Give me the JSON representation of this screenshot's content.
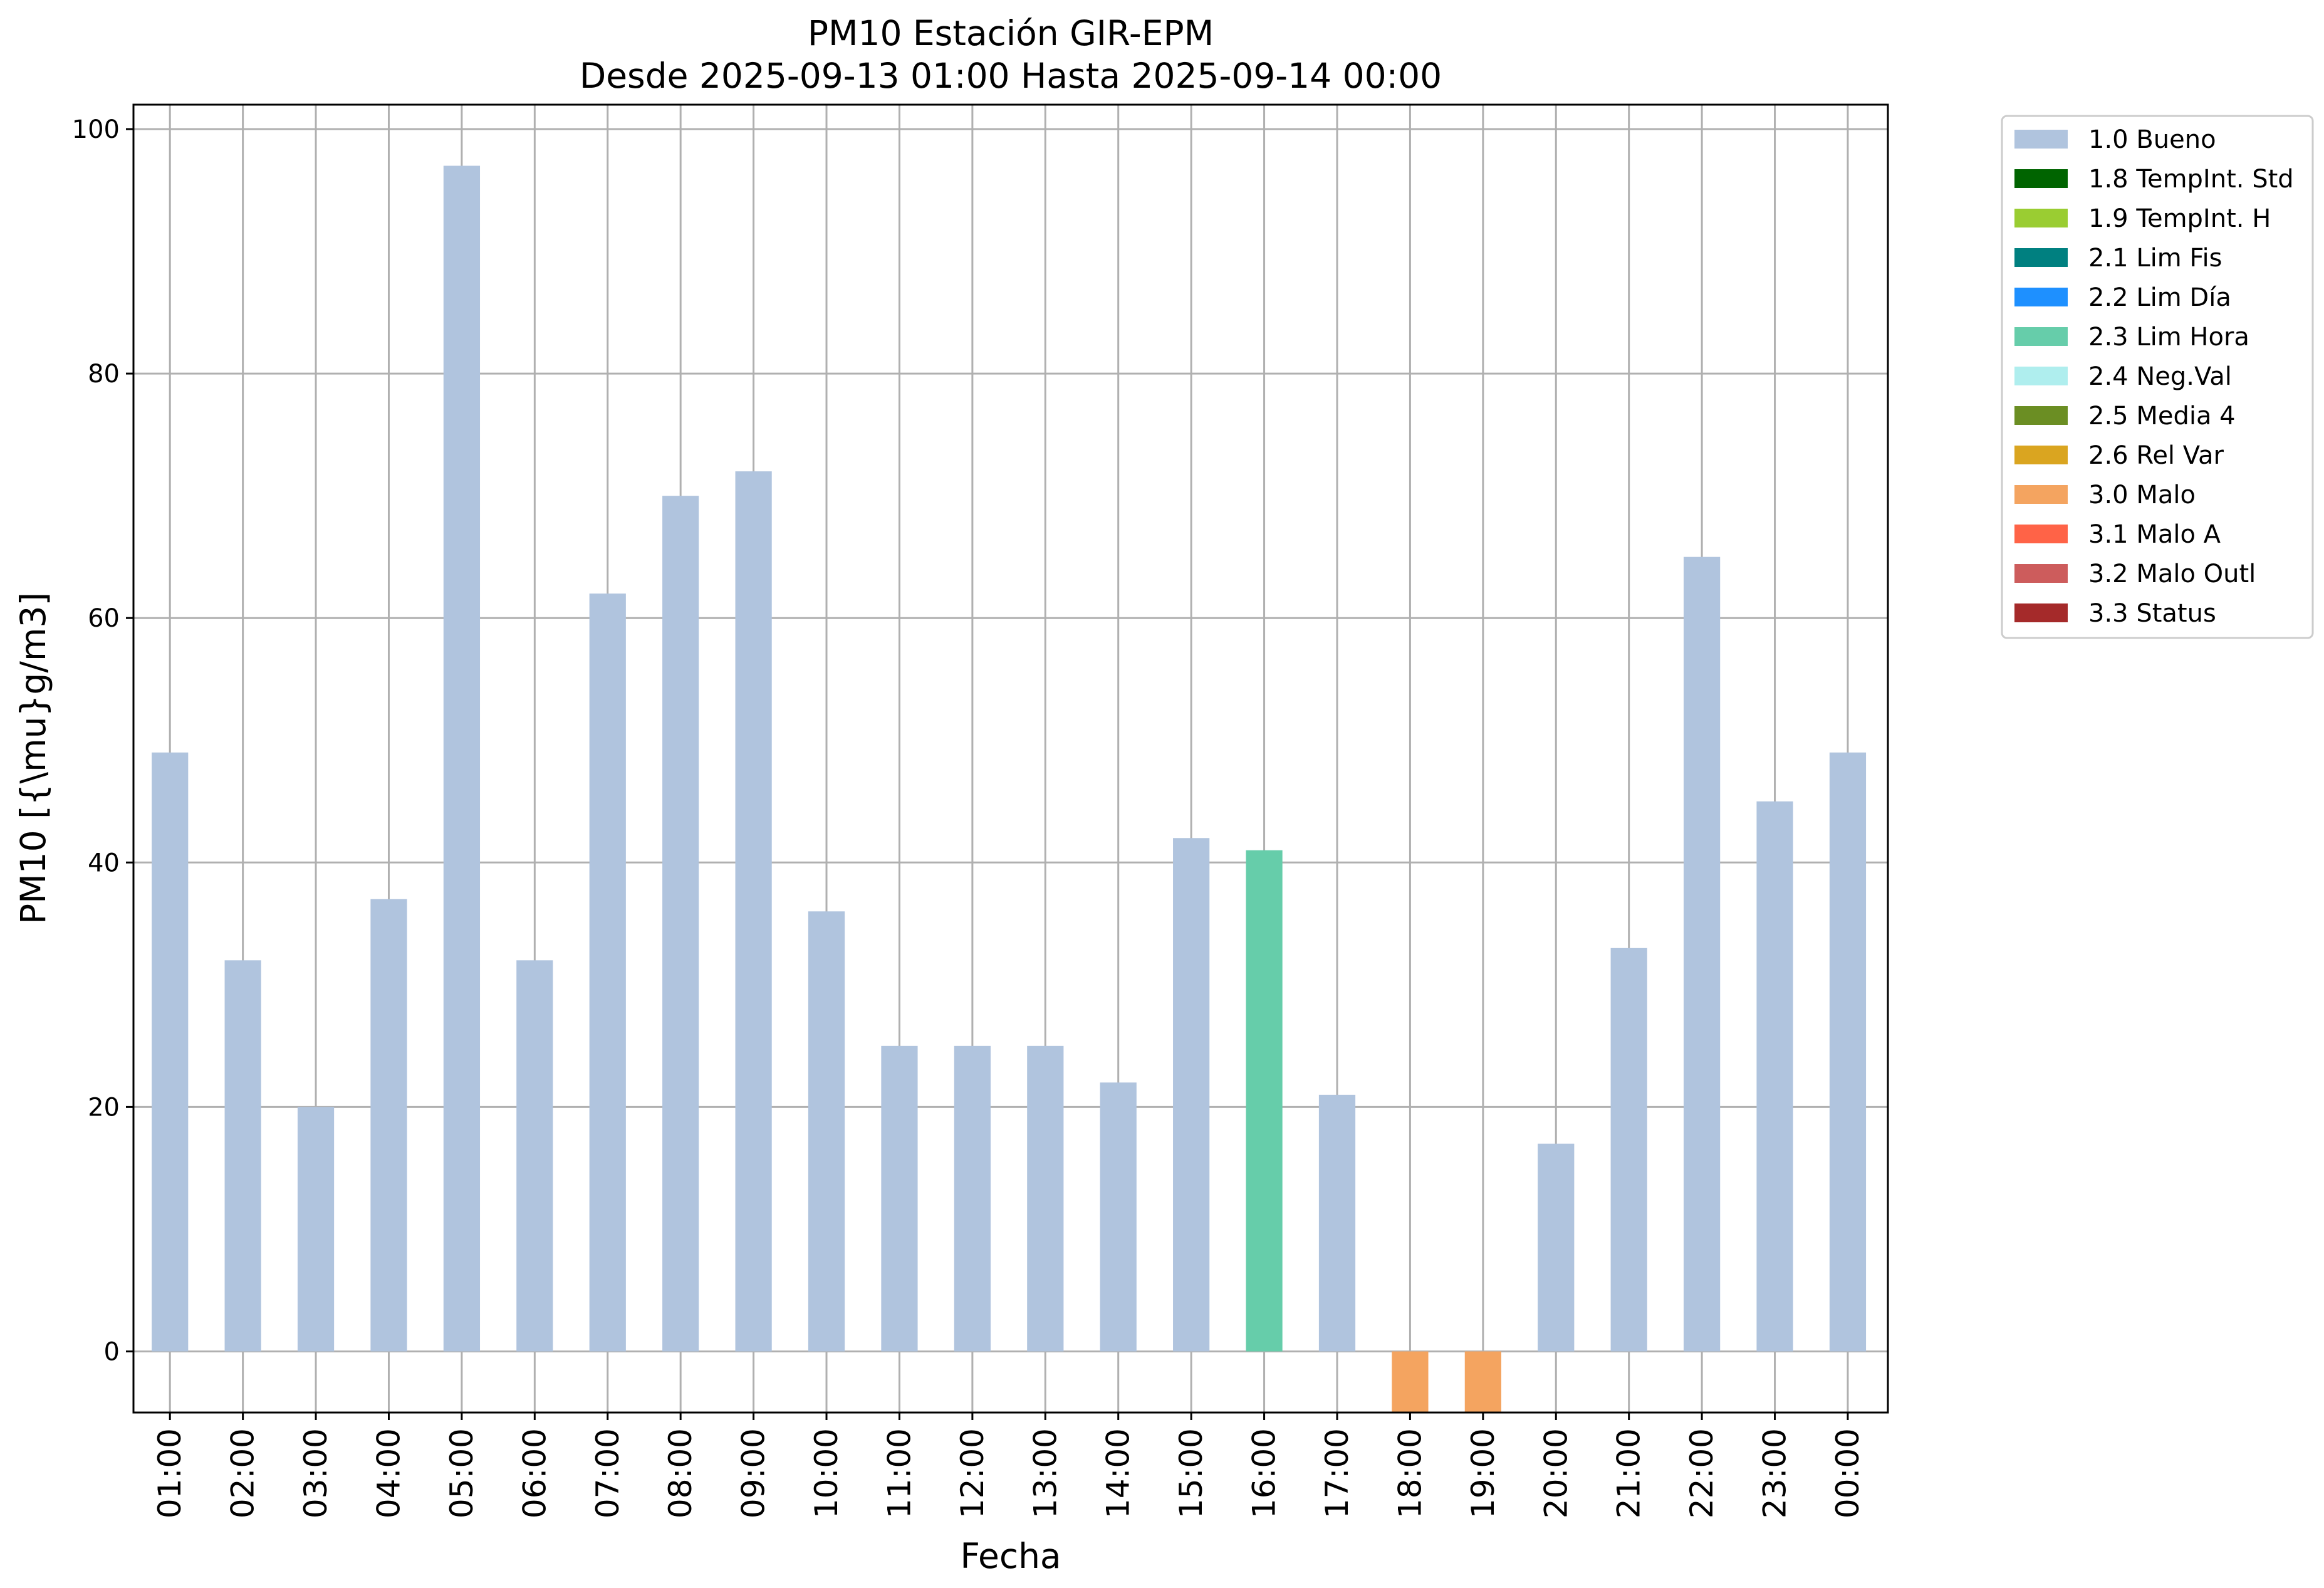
{
  "chart_data": {
    "type": "bar",
    "title": "PM10 Estación GIR-EPM",
    "subtitle": "Desde 2025-09-13 01:00 Hasta 2025-09-14 00:00",
    "xlabel": "Fecha",
    "ylabel": "PM10 [{\\mu}g/m3]",
    "ylim": [
      -5,
      102
    ],
    "yticks": [
      0,
      20,
      40,
      60,
      80,
      100
    ],
    "grid": true,
    "legend_position": "outside-top-right",
    "categories": [
      "01:00",
      "02:00",
      "03:00",
      "04:00",
      "05:00",
      "06:00",
      "07:00",
      "08:00",
      "09:00",
      "10:00",
      "11:00",
      "12:00",
      "13:00",
      "14:00",
      "15:00",
      "16:00",
      "17:00",
      "18:00",
      "19:00",
      "20:00",
      "21:00",
      "22:00",
      "23:00",
      "00:00"
    ],
    "values": [
      49,
      32,
      20,
      37,
      97,
      32,
      62,
      70,
      72,
      36,
      25,
      25,
      25,
      22,
      42,
      41,
      21,
      -5,
      -5,
      17,
      33,
      65,
      45,
      49
    ],
    "flags": [
      "1.0 Bueno",
      "1.0 Bueno",
      "1.0 Bueno",
      "1.0 Bueno",
      "1.0 Bueno",
      "1.0 Bueno",
      "1.0 Bueno",
      "1.0 Bueno",
      "1.0 Bueno",
      "1.0 Bueno",
      "1.0 Bueno",
      "1.0 Bueno",
      "1.0 Bueno",
      "1.0 Bueno",
      "1.0 Bueno",
      "2.3 Lim Hora",
      "1.0 Bueno",
      "3.0 Malo",
      "3.0 Malo",
      "1.0 Bueno",
      "1.0 Bueno",
      "1.0 Bueno",
      "1.0 Bueno",
      "1.0 Bueno"
    ],
    "legend": [
      {
        "label": "1.0 Bueno",
        "color": "#b0c4de"
      },
      {
        "label": "1.8 TempInt. Std",
        "color": "#006400"
      },
      {
        "label": "1.9 TempInt. H",
        "color": "#9acd32"
      },
      {
        "label": "2.1 Lim Fis",
        "color": "#008080"
      },
      {
        "label": "2.2 Lim Día",
        "color": "#1e90ff"
      },
      {
        "label": "2.3 Lim Hora",
        "color": "#66cdaa"
      },
      {
        "label": "2.4 Neg.Val",
        "color": "#afeeee"
      },
      {
        "label": "2.5 Media 4",
        "color": "#6b8e23"
      },
      {
        "label": "2.6 Rel Var",
        "color": "#daa520"
      },
      {
        "label": "3.0 Malo",
        "color": "#f4a460"
      },
      {
        "label": "3.1 Malo A",
        "color": "#ff6347"
      },
      {
        "label": "3.2 Malo Outl",
        "color": "#cd5c5c"
      },
      {
        "label": "3.3 Status",
        "color": "#a52a2a"
      }
    ]
  }
}
